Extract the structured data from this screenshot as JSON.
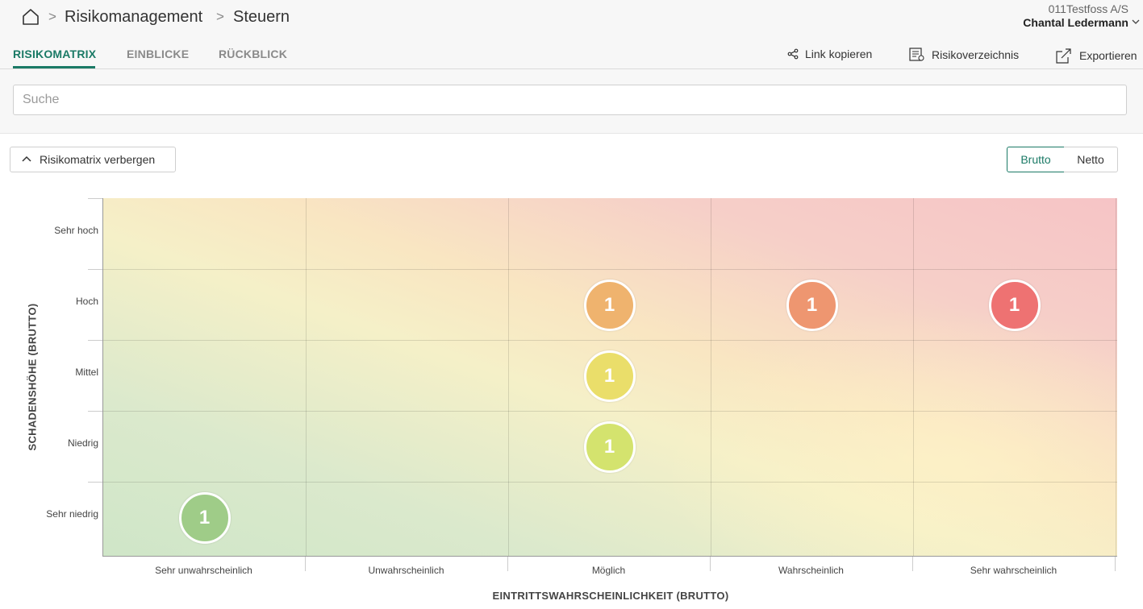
{
  "header": {
    "breadcrumb": [
      "Risikomanagement",
      "Steuern"
    ],
    "tenant": "011Testfoss A/S",
    "user": "Chantal Ledermann"
  },
  "tabs": [
    {
      "label": "RISIKOMATRIX",
      "active": true
    },
    {
      "label": "EINBLICKE",
      "active": false
    },
    {
      "label": "RÜCKBLICK",
      "active": false
    }
  ],
  "actions": {
    "copy_link": "Link kopieren",
    "register": "Risikoverzeichnis",
    "export": "Exportieren"
  },
  "search": {
    "placeholder": "Suche",
    "value": ""
  },
  "toolbar": {
    "hide_matrix": "Risikomatrix verbergen",
    "toggle": {
      "brutto": "Brutto",
      "netto": "Netto",
      "selected": "Brutto"
    }
  },
  "matrix": {
    "y_axis_title": "SCHADENSHÖHE (BRUTTO)",
    "x_axis_title": "EINTRITTSWAHRSCHEINLICHKEIT (BRUTTO)",
    "y_levels": [
      "Sehr hoch",
      "Hoch",
      "Mittel",
      "Niedrig",
      "Sehr niedrig"
    ],
    "x_levels": [
      "Sehr unwahrscheinlich",
      "Unwahrscheinlich",
      "Möglich",
      "Wahrscheinlich",
      "Sehr wahrscheinlich"
    ],
    "bubbles": [
      {
        "likelihood": "Möglich",
        "impact": "Hoch",
        "count": "1",
        "color": "#efb36e"
      },
      {
        "likelihood": "Wahrscheinlich",
        "impact": "Hoch",
        "count": "1",
        "color": "#ee9670"
      },
      {
        "likelihood": "Sehr wahrscheinlich",
        "impact": "Hoch",
        "count": "1",
        "color": "#ee7272"
      },
      {
        "likelihood": "Möglich",
        "impact": "Mittel",
        "count": "1",
        "color": "#eade6a"
      },
      {
        "likelihood": "Möglich",
        "impact": "Niedrig",
        "count": "1",
        "color": "#d4e36e"
      },
      {
        "likelihood": "Sehr unwahrscheinlich",
        "impact": "Sehr niedrig",
        "count": "1",
        "color": "#9fcc88"
      }
    ]
  },
  "colors": {
    "accent": "#1b7a66"
  }
}
